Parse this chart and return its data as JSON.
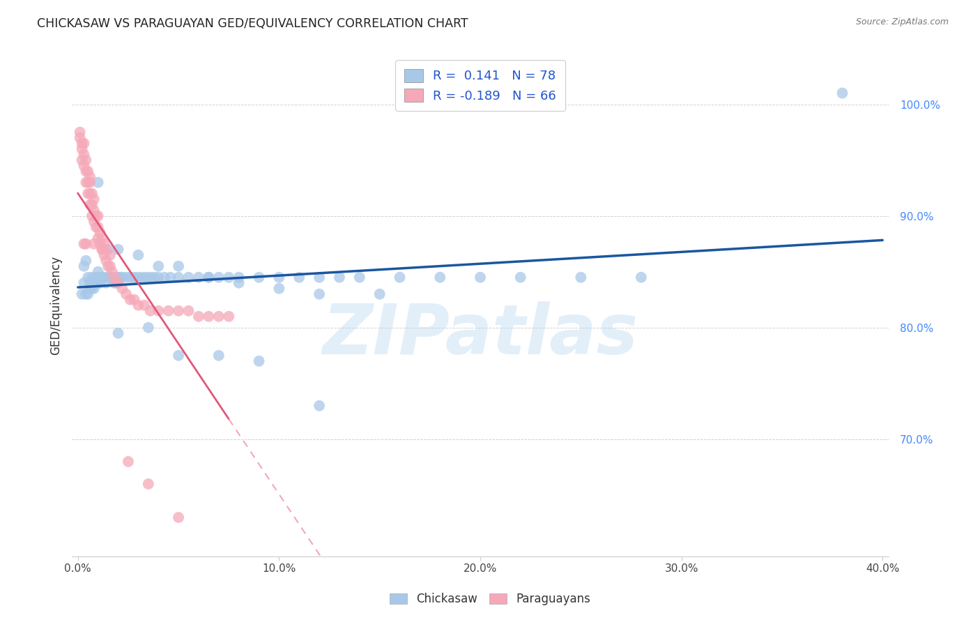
{
  "title": "CHICKASAW VS PARAGUAYAN GED/EQUIVALENCY CORRELATION CHART",
  "source": "Source: ZipAtlas.com",
  "ylabel": "GED/Equivalency",
  "r_chickasaw": 0.141,
  "n_chickasaw": 78,
  "r_paraguayan": -0.189,
  "n_paraguayan": 66,
  "chickasaw_color": "#a8c8e8",
  "paraguayan_color": "#f5a8b8",
  "trend_blue": "#1a56a0",
  "trend_pink": "#e05878",
  "trend_pink_dash": "#f0a8b8",
  "watermark": "ZIPatlas",
  "xlim": [
    -0.003,
    0.403
  ],
  "ylim": [
    0.595,
    1.045
  ],
  "xticks": [
    0.0,
    0.1,
    0.2,
    0.3,
    0.4
  ],
  "yticks": [
    0.7,
    0.8,
    0.9,
    1.0
  ],
  "chickasaw_x": [
    0.002,
    0.003,
    0.003,
    0.004,
    0.004,
    0.005,
    0.005,
    0.006,
    0.006,
    0.007,
    0.007,
    0.008,
    0.008,
    0.009,
    0.009,
    0.01,
    0.01,
    0.011,
    0.011,
    0.012,
    0.013,
    0.014,
    0.015,
    0.016,
    0.017,
    0.018,
    0.019,
    0.02,
    0.021,
    0.022,
    0.024,
    0.026,
    0.028,
    0.03,
    0.032,
    0.034,
    0.036,
    0.038,
    0.04,
    0.043,
    0.046,
    0.05,
    0.055,
    0.06,
    0.065,
    0.07,
    0.075,
    0.08,
    0.09,
    0.1,
    0.11,
    0.12,
    0.13,
    0.14,
    0.16,
    0.18,
    0.2,
    0.22,
    0.25,
    0.28,
    0.01,
    0.015,
    0.02,
    0.03,
    0.04,
    0.05,
    0.065,
    0.08,
    0.1,
    0.12,
    0.15,
    0.02,
    0.035,
    0.05,
    0.07,
    0.09,
    0.12,
    0.38
  ],
  "chickasaw_y": [
    0.83,
    0.855,
    0.84,
    0.86,
    0.83,
    0.845,
    0.83,
    0.84,
    0.835,
    0.845,
    0.835,
    0.84,
    0.835,
    0.845,
    0.84,
    0.84,
    0.85,
    0.84,
    0.845,
    0.845,
    0.845,
    0.84,
    0.845,
    0.845,
    0.845,
    0.84,
    0.845,
    0.845,
    0.845,
    0.845,
    0.845,
    0.845,
    0.845,
    0.845,
    0.845,
    0.845,
    0.845,
    0.845,
    0.845,
    0.845,
    0.845,
    0.845,
    0.845,
    0.845,
    0.845,
    0.845,
    0.845,
    0.845,
    0.845,
    0.845,
    0.845,
    0.845,
    0.845,
    0.845,
    0.845,
    0.845,
    0.845,
    0.845,
    0.845,
    0.845,
    0.93,
    0.87,
    0.87,
    0.865,
    0.855,
    0.855,
    0.845,
    0.84,
    0.835,
    0.83,
    0.83,
    0.795,
    0.8,
    0.775,
    0.775,
    0.77,
    0.73,
    1.01
  ],
  "paraguayan_x": [
    0.001,
    0.001,
    0.002,
    0.002,
    0.002,
    0.003,
    0.003,
    0.003,
    0.004,
    0.004,
    0.004,
    0.005,
    0.005,
    0.005,
    0.006,
    0.006,
    0.006,
    0.006,
    0.007,
    0.007,
    0.007,
    0.008,
    0.008,
    0.008,
    0.009,
    0.009,
    0.01,
    0.01,
    0.01,
    0.011,
    0.011,
    0.012,
    0.012,
    0.013,
    0.013,
    0.014,
    0.014,
    0.015,
    0.016,
    0.017,
    0.018,
    0.019,
    0.02,
    0.022,
    0.024,
    0.026,
    0.028,
    0.03,
    0.033,
    0.036,
    0.04,
    0.045,
    0.05,
    0.055,
    0.06,
    0.065,
    0.07,
    0.075,
    0.003,
    0.004,
    0.008,
    0.012,
    0.016,
    0.025,
    0.035,
    0.05
  ],
  "paraguayan_y": [
    0.97,
    0.975,
    0.95,
    0.965,
    0.96,
    0.945,
    0.955,
    0.965,
    0.93,
    0.94,
    0.95,
    0.92,
    0.93,
    0.94,
    0.91,
    0.92,
    0.93,
    0.935,
    0.9,
    0.91,
    0.92,
    0.895,
    0.905,
    0.915,
    0.89,
    0.9,
    0.88,
    0.89,
    0.9,
    0.875,
    0.885,
    0.87,
    0.88,
    0.865,
    0.875,
    0.86,
    0.87,
    0.855,
    0.855,
    0.85,
    0.845,
    0.84,
    0.84,
    0.835,
    0.83,
    0.825,
    0.825,
    0.82,
    0.82,
    0.815,
    0.815,
    0.815,
    0.815,
    0.815,
    0.81,
    0.81,
    0.81,
    0.81,
    0.875,
    0.875,
    0.875,
    0.87,
    0.865,
    0.68,
    0.66,
    0.63
  ]
}
